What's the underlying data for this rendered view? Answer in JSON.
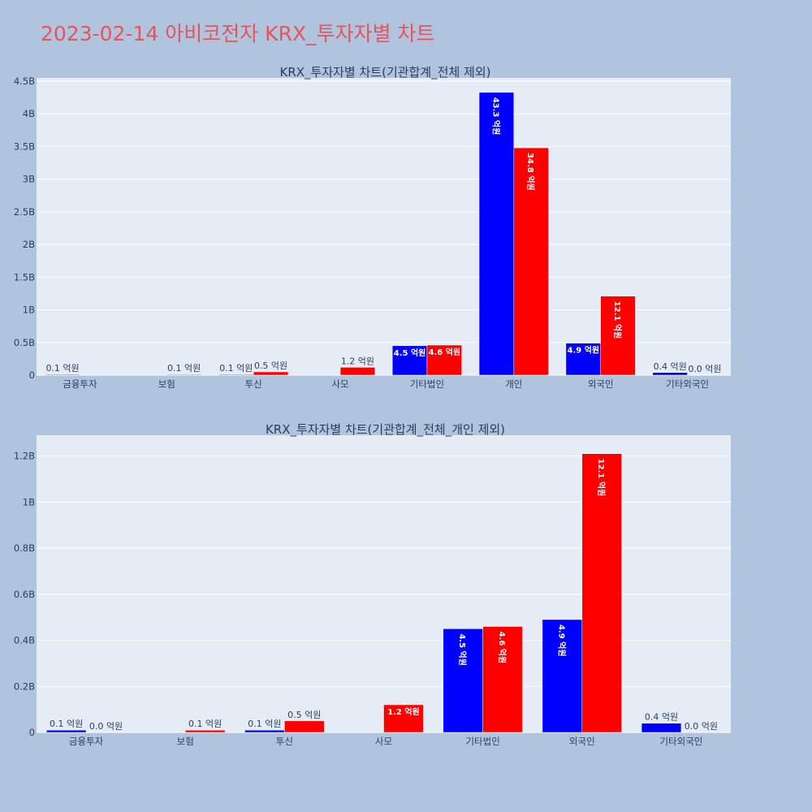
{
  "title": "2023-02-14 아비코전자 KRX_투자자별 차트",
  "colors": {
    "title": "#e8545c",
    "background": "#b0c4de",
    "plot_bg": "#e5ecf6",
    "buy": "#0000ff",
    "sell": "#ff0000",
    "text": "#2a3f5f"
  },
  "chart_data": [
    {
      "type": "bar",
      "title": "KRX_투자자별 차트(기관합계_전체 제외)",
      "categories": [
        "금융투자",
        "보험",
        "투신",
        "사모",
        "기타법인",
        "개인",
        "외국인",
        "기타외국인"
      ],
      "ylim": [
        0,
        4550000000
      ],
      "yticks": [
        0,
        500000000,
        1000000000,
        1500000000,
        2000000000,
        2500000000,
        3000000000,
        3500000000,
        4000000000,
        4500000000
      ],
      "ytick_labels": [
        "0",
        "0.5B",
        "1B",
        "1.5B",
        "2B",
        "2.5B",
        "3B",
        "3.5B",
        "4B",
        "4.5B"
      ],
      "grid": true,
      "series": [
        {
          "values": [
            10000000,
            null,
            10000000,
            null,
            450000000,
            4330000000,
            490000000,
            40000000
          ],
          "labels": [
            "0.1 억원",
            "",
            "0.1 억원",
            "",
            "4.5 억원",
            "43.3 억원",
            "4.9 억원",
            "0.4 억원"
          ]
        },
        {
          "values": [
            null,
            10000000,
            50000000,
            120000000,
            460000000,
            3480000000,
            1210000000,
            0
          ],
          "labels": [
            "",
            "0.1 억원",
            "0.5 억원",
            "1.2 억원",
            "4.6 억원",
            "34.8 억원",
            "12.1 억원",
            "0.0 억원"
          ]
        }
      ]
    },
    {
      "type": "bar",
      "title": "KRX_투자자별 차트(기관합계_전체_개인 제외)",
      "categories": [
        "금융투자",
        "보험",
        "투신",
        "사모",
        "기타법인",
        "외국인",
        "기타외국인"
      ],
      "ylim": [
        0,
        1290000000
      ],
      "yticks": [
        0,
        200000000,
        400000000,
        600000000,
        800000000,
        1000000000,
        1200000000
      ],
      "ytick_labels": [
        "0",
        "0.2B",
        "0.4B",
        "0.6B",
        "0.8B",
        "1B",
        "1.2B"
      ],
      "grid": true,
      "series": [
        {
          "values": [
            10000000,
            null,
            10000000,
            null,
            450000000,
            490000000,
            40000000
          ],
          "labels": [
            "0.1 억원",
            "",
            "0.1 억원",
            "",
            "4.5 억원",
            "4.9 억원",
            "0.4 억원"
          ]
        },
        {
          "values": [
            0,
            10000000,
            50000000,
            120000000,
            460000000,
            1210000000,
            0
          ],
          "labels": [
            "0.0 억원",
            "0.1 억원",
            "0.5 억원",
            "1.2 억원",
            "4.6 억원",
            "12.1 억원",
            "0.0 억원"
          ]
        }
      ]
    }
  ]
}
